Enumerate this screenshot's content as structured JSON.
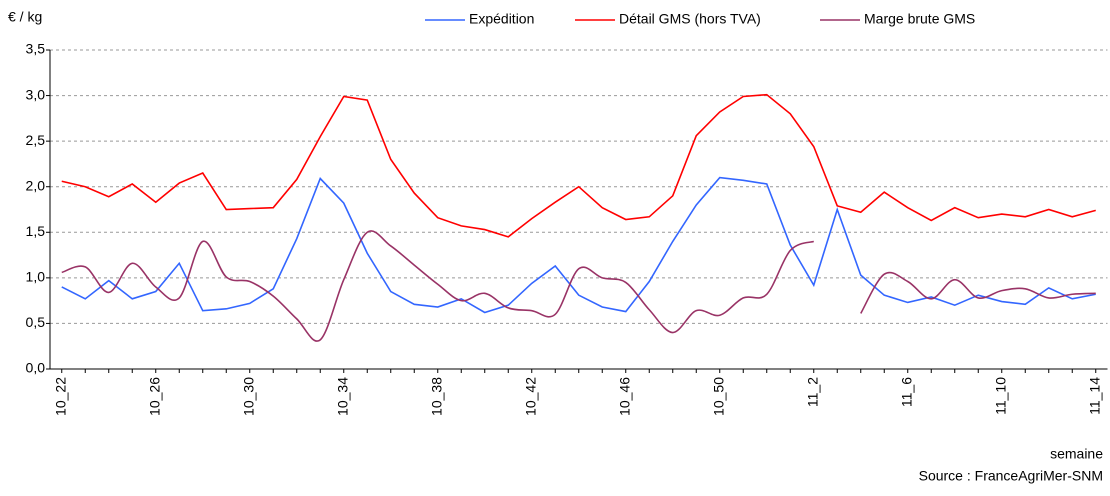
{
  "chart_data": {
    "type": "line",
    "y_label": "€ / kg",
    "x_label": "semaine",
    "source": "Source : FranceAgriMer-SNM",
    "categories": [
      "10_22",
      null,
      null,
      null,
      "10_26",
      null,
      null,
      null,
      "10_30",
      null,
      null,
      null,
      "10_34",
      null,
      null,
      null,
      "10_38",
      null,
      null,
      null,
      "10_42",
      null,
      null,
      null,
      "10_46",
      null,
      null,
      null,
      "10_50",
      null,
      null,
      null,
      "11_2",
      null,
      null,
      null,
      "11_6",
      null,
      null,
      null,
      "11_10",
      null,
      null,
      null,
      "11_14"
    ],
    "series": [
      {
        "name": "Expédition",
        "color": "#3366ff",
        "smooth": false,
        "values": [
          0.9,
          0.77,
          0.97,
          0.77,
          0.85,
          1.16,
          0.64,
          0.66,
          0.72,
          0.88,
          1.43,
          2.09,
          1.82,
          1.27,
          0.85,
          0.71,
          0.68,
          0.77,
          0.62,
          0.7,
          0.94,
          1.13,
          0.81,
          0.68,
          0.63,
          0.96,
          1.4,
          1.8,
          2.1,
          2.07,
          2.03,
          1.36,
          0.92,
          1.75,
          1.03,
          0.81,
          0.73,
          0.79,
          0.7,
          0.81,
          0.74,
          0.71,
          0.89,
          0.77,
          0.82
        ]
      },
      {
        "name": "Détail GMS (hors TVA)",
        "color": "#ff0000",
        "smooth": false,
        "values": [
          2.06,
          2.0,
          1.89,
          2.03,
          1.83,
          2.04,
          2.15,
          1.75,
          1.76,
          1.77,
          2.08,
          2.55,
          2.99,
          2.95,
          2.3,
          1.93,
          1.66,
          1.57,
          1.53,
          1.45,
          1.65,
          1.83,
          2.0,
          1.77,
          1.64,
          1.67,
          1.9,
          2.56,
          2.82,
          2.99,
          3.01,
          2.8,
          2.44,
          1.79,
          1.72,
          1.94,
          1.77,
          1.63,
          1.77,
          1.66,
          1.7,
          1.67,
          1.75,
          1.67,
          1.74
        ]
      },
      {
        "name": "Marge brute GMS",
        "color": "#993366",
        "smooth": true,
        "values": [
          1.06,
          1.12,
          0.84,
          1.16,
          0.9,
          0.78,
          1.4,
          1.01,
          0.96,
          0.8,
          0.55,
          0.32,
          0.98,
          1.5,
          1.35,
          1.14,
          0.93,
          0.75,
          0.83,
          0.67,
          0.64,
          0.6,
          1.1,
          1.0,
          0.95,
          0.65,
          0.4,
          0.64,
          0.59,
          0.78,
          0.82,
          1.3,
          1.4,
          null,
          0.61,
          1.04,
          0.96,
          0.77,
          0.98,
          0.78,
          0.86,
          0.88,
          0.78,
          0.82,
          0.83
        ]
      }
    ],
    "ylim": [
      0,
      3.5
    ],
    "yticks": [
      {
        "value": 0,
        "label": "0,0"
      },
      {
        "value": 0.5,
        "label": "0,5"
      },
      {
        "value": 1,
        "label": "1,0"
      },
      {
        "value": 1.5,
        "label": "1,5"
      },
      {
        "value": 2,
        "label": "2,0"
      },
      {
        "value": 2.5,
        "label": "2,5"
      },
      {
        "value": 3,
        "label": "3,0"
      },
      {
        "value": 3.5,
        "label": "3,5"
      }
    ],
    "grid": true
  }
}
